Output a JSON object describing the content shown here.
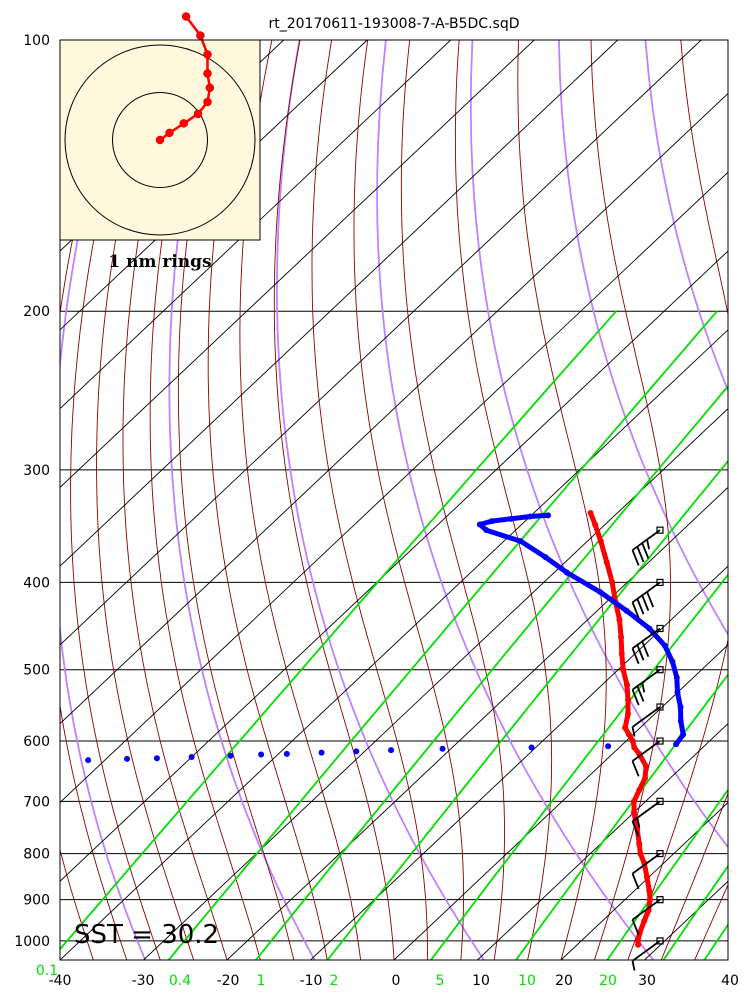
{
  "title": "rt_20170611-193008-7-A-B5DC.sqD",
  "sst_label": "SST = 30.2",
  "hodograph": {
    "ring_label": "1 nm rings",
    "background": "#fff8dc",
    "trace_color": "#ff0000",
    "points": [
      [
        0.0,
        0.0
      ],
      [
        0.2,
        0.15
      ],
      [
        0.5,
        0.35
      ],
      [
        0.8,
        0.55
      ],
      [
        1.0,
        0.8
      ],
      [
        1.05,
        1.1
      ],
      [
        1.0,
        1.4
      ],
      [
        1.0,
        1.8
      ],
      [
        0.85,
        2.2
      ],
      [
        0.55,
        2.6
      ]
    ]
  },
  "colors": {
    "temperature": "#ff0000",
    "dewpoint": "#0000ff",
    "dry_adiabat": "#c080ff",
    "moist_adiabat": "#8b0000",
    "isotherm": "#000000",
    "mixing_ratio": "#00e000",
    "wind_barb": "#000000",
    "hodograph_ring": "#000000"
  },
  "chart_data": {
    "type": "skew-t",
    "title": "rt_20170611-193008-7-A-B5DC.sqD",
    "x_axis": {
      "ticks": [
        -40,
        -30,
        -20,
        -10,
        0,
        10,
        20,
        30,
        40
      ],
      "range": [
        -40,
        40
      ]
    },
    "y_axis": {
      "scale": "log",
      "range": [
        1050,
        100
      ],
      "ticks": [
        100,
        200,
        300,
        400,
        500,
        600,
        700,
        800,
        900,
        1000
      ]
    },
    "mixing_ratio_labels": [
      "0.1",
      "0.4",
      "1",
      "2",
      "5",
      "10",
      "20"
    ],
    "grid": true,
    "temperature": {
      "p": [
        1010,
        1000,
        980,
        950,
        925,
        900,
        880,
        850,
        820,
        800,
        780,
        750,
        720,
        700,
        680,
        660,
        640,
        620,
        610,
        600,
        590,
        580,
        560,
        540,
        520,
        500,
        480,
        460,
        440,
        420,
        400,
        380,
        360,
        345,
        335
      ],
      "t": [
        27.3,
        26.8,
        26.0,
        25.0,
        24.2,
        23.0,
        21.8,
        19.8,
        17.7,
        16.0,
        14.6,
        12.4,
        10.0,
        8.6,
        7.8,
        7.0,
        5.6,
        3.2,
        1.8,
        0.8,
        -0.5,
        -1.8,
        -3.2,
        -5.0,
        -7.0,
        -9.4,
        -11.6,
        -13.8,
        -16.2,
        -19.0,
        -21.8,
        -25.0,
        -28.4,
        -31.2,
        -33.2
      ]
    },
    "dewpoint": {
      "p": [
        605,
        590,
        570,
        550,
        530,
        510,
        490,
        470,
        450,
        430,
        410,
        390,
        375,
        360,
        350,
        345,
        342,
        340,
        338,
        337
      ],
      "t": [
        6.4,
        6.0,
        4.0,
        2.2,
        0.0,
        -2.0,
        -4.5,
        -7.5,
        -11.5,
        -16.5,
        -22.0,
        -28.5,
        -33.0,
        -38.0,
        -43.5,
        -45.0,
        -44.0,
        -42.0,
        -40.0,
        -38.0
      ]
    },
    "dewpoint_scatter": {
      "p": [
        632,
        632,
        630,
        630,
        628,
        627,
        625,
        623,
        621,
        620,
        618,
        616,
        614,
        612,
        610,
        608
      ],
      "t": [
        -79.0,
        -73.0,
        -68.0,
        -62.0,
        -57.5,
        -54.0,
        -50.0,
        -45.5,
        -42.0,
        -39.0,
        -35.0,
        -31.0,
        -27.0,
        -21.0,
        -10.5,
        -1.5
      ]
    },
    "wind_barbs": [
      {
        "p": 350,
        "speed_kt": 35
      },
      {
        "p": 400,
        "speed_kt": 40
      },
      {
        "p": 450,
        "speed_kt": 30
      },
      {
        "p": 500,
        "speed_kt": 25
      },
      {
        "p": 550,
        "speed_kt": 5
      },
      {
        "p": 600,
        "speed_kt": 10
      },
      {
        "p": 700,
        "speed_kt": 15
      },
      {
        "p": 800,
        "speed_kt": 10
      },
      {
        "p": 900,
        "speed_kt": 10
      },
      {
        "p": 1000,
        "speed_kt": 5
      }
    ]
  }
}
